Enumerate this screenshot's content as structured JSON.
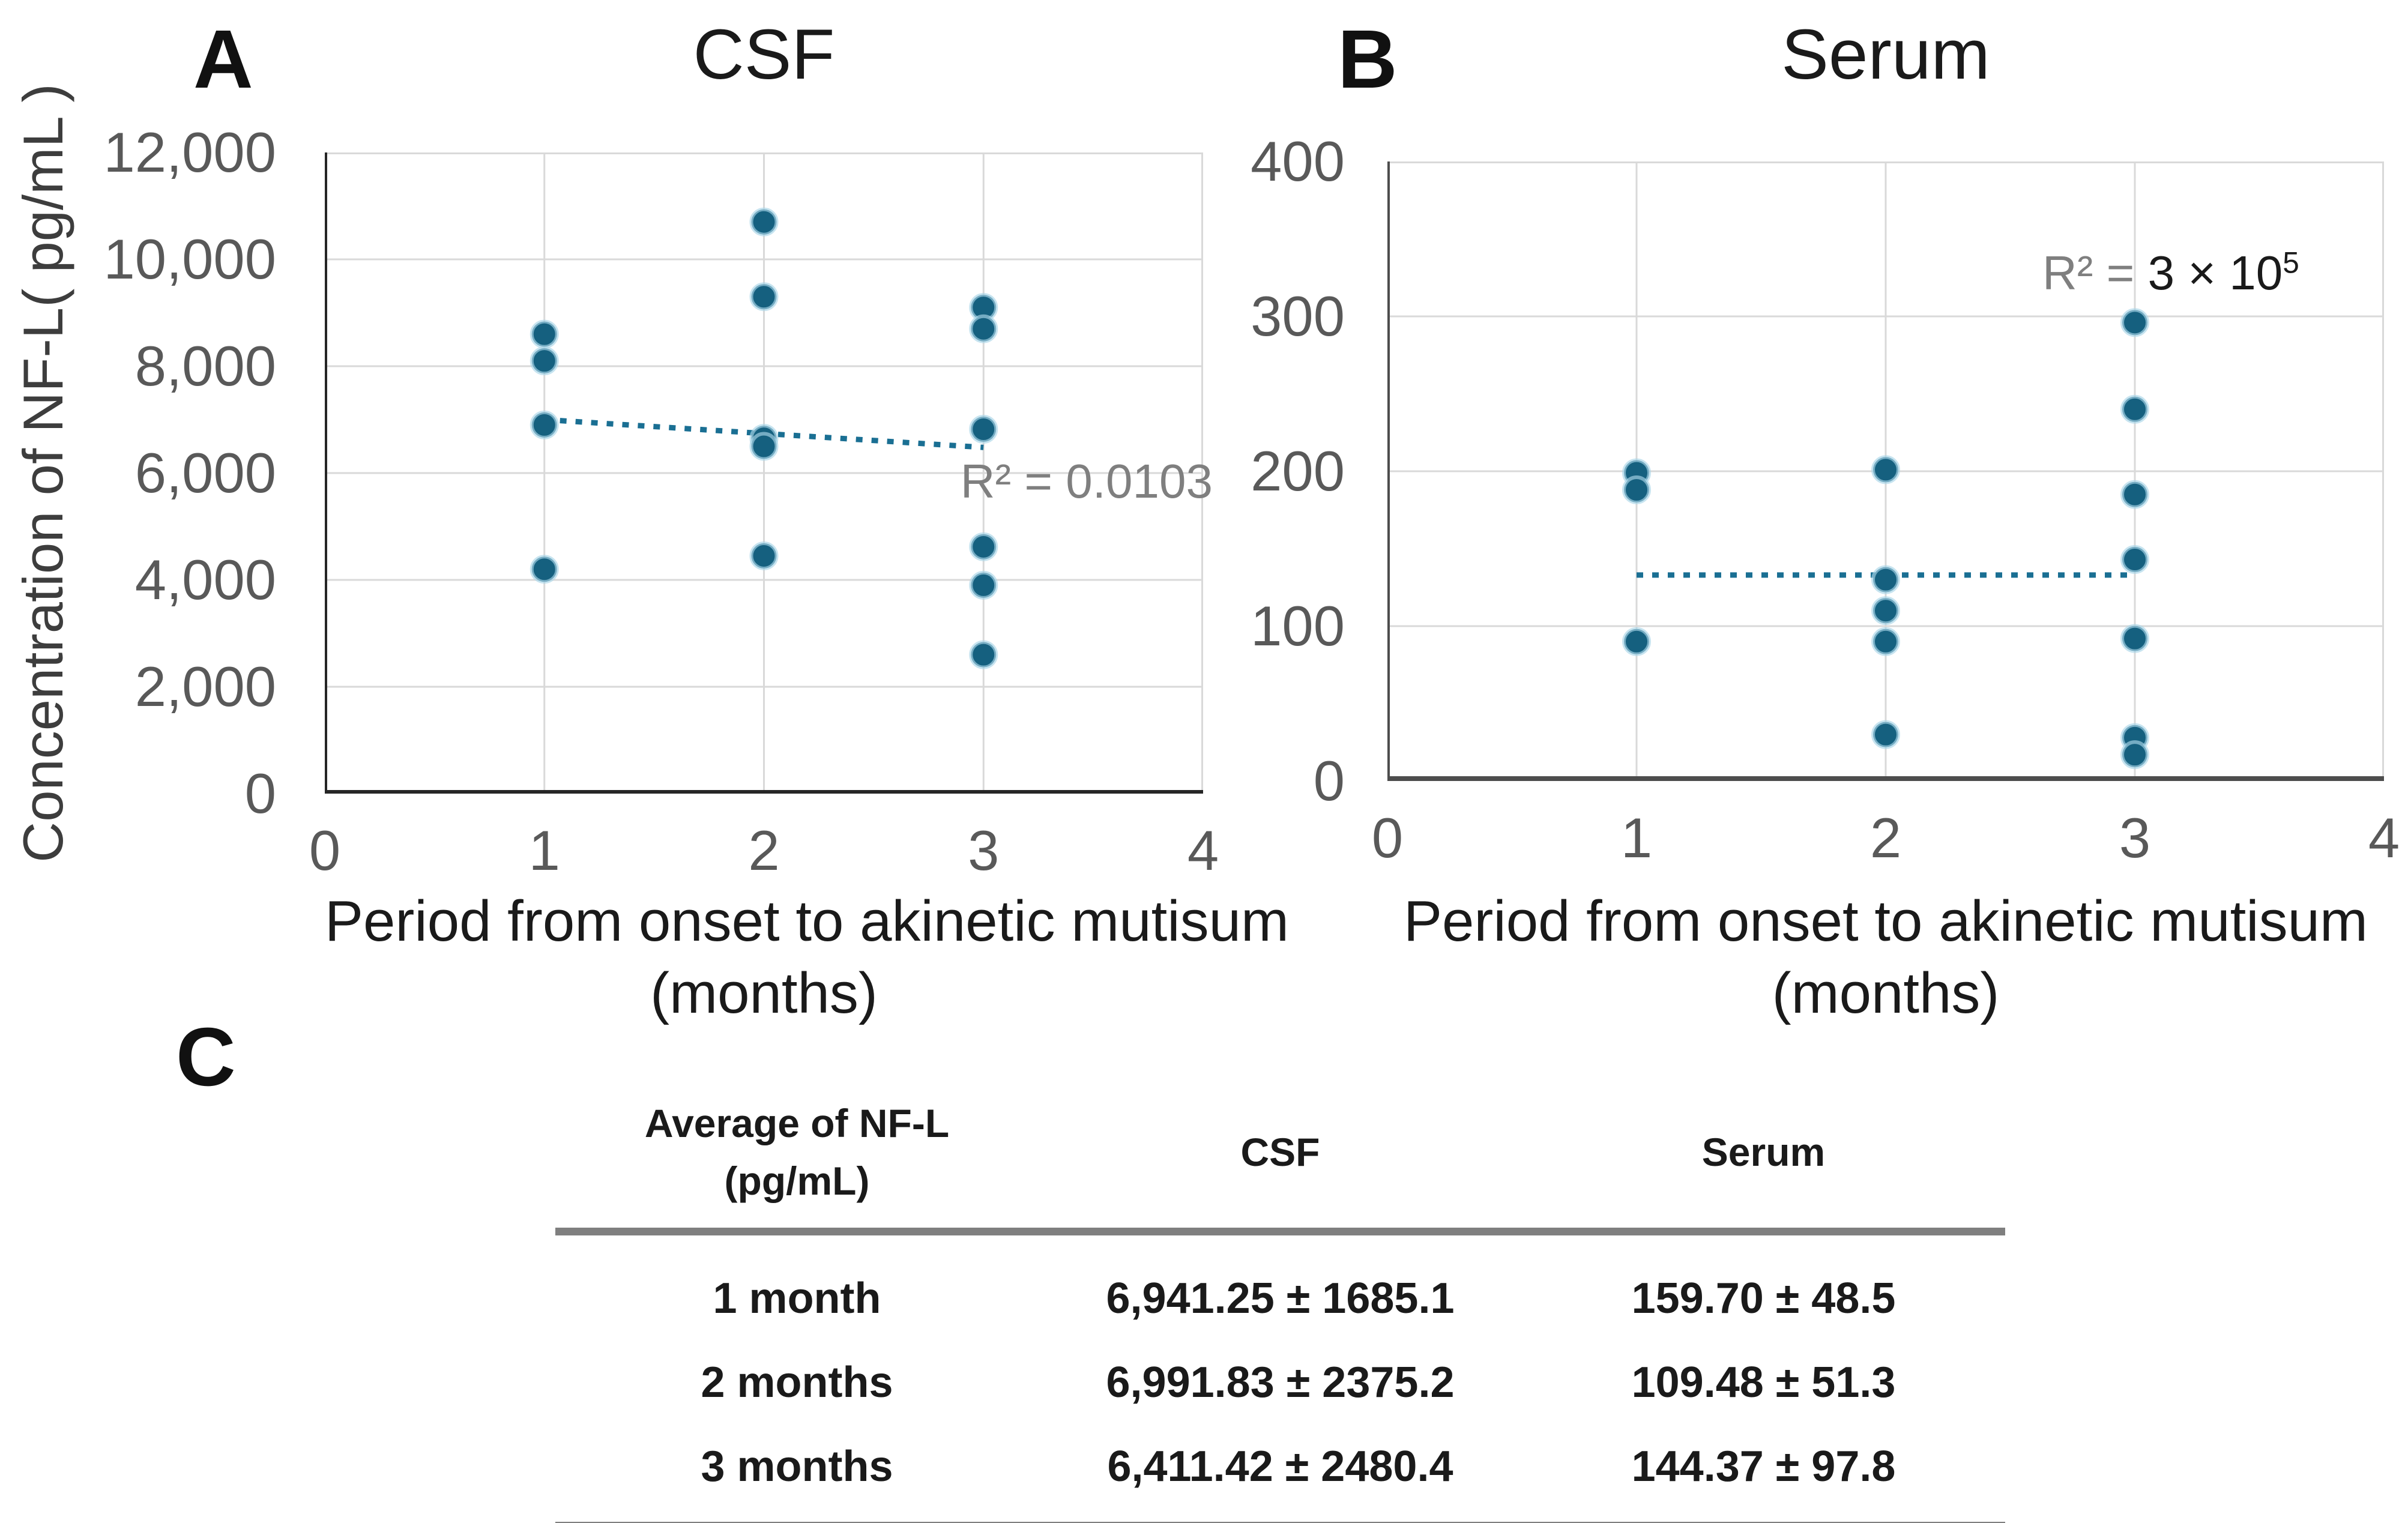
{
  "labels": {
    "panel_a": "A",
    "panel_b": "B",
    "panel_c": "C"
  },
  "colors": {
    "dot_fill": "#15607f",
    "dot_halo": "#a9d6e8",
    "trendline": "#1a6f93",
    "gridline": "#d9d9d9",
    "axis_spine_a": "#262626",
    "axis_spine_b": "#4d4d4d",
    "tick_text": "#595959",
    "r2_gray": "#7f7f7f",
    "r2_dark": "#1a1a1a",
    "table_rule": "#7f7f7f"
  },
  "chart_data": [
    {
      "type": "scatter",
      "panel": "A",
      "title": "CSF",
      "ylabel": "Concentration of NF-L( pg/mL )",
      "xlabel_line1": "Period from onset to akinetic mutisum",
      "xlabel_line2": "(months)",
      "xlim": [
        0,
        4
      ],
      "ylim": [
        0,
        12000
      ],
      "xticks": [
        0,
        1,
        2,
        3,
        4
      ],
      "xtick_labels": [
        "0",
        "1",
        "2",
        "3",
        "4"
      ],
      "yticks": [
        0,
        2000,
        4000,
        6000,
        8000,
        10000,
        12000
      ],
      "ytick_labels": [
        "0",
        "2,000",
        "4,000",
        "6,000",
        "8,000",
        "10,000",
        "12,000"
      ],
      "grid": true,
      "legend": "none",
      "points": [
        [
          1,
          8600
        ],
        [
          1,
          8100
        ],
        [
          1,
          6900
        ],
        [
          1,
          4200
        ],
        [
          2,
          10700
        ],
        [
          2,
          9300
        ],
        [
          2,
          6650
        ],
        [
          2,
          6500
        ],
        [
          2,
          4450
        ],
        [
          3,
          9100
        ],
        [
          3,
          8700
        ],
        [
          3,
          6820
        ],
        [
          3,
          4620
        ],
        [
          3,
          3900
        ],
        [
          3,
          2600
        ]
      ],
      "trendline": {
        "x1": 1,
        "y1": 7000,
        "x2": 3,
        "y2": 6480,
        "style": "dotted"
      },
      "r2": {
        "prefix": "R² = 0.0103",
        "value": "",
        "sup": ""
      }
    },
    {
      "type": "scatter",
      "panel": "B",
      "title": "Serum",
      "ylabel": "",
      "xlabel_line1": "Period from onset to akinetic mutisum",
      "xlabel_line2": "(months)",
      "xlim": [
        0,
        4
      ],
      "ylim": [
        0,
        400
      ],
      "xticks": [
        0,
        1,
        2,
        3,
        4
      ],
      "xtick_labels": [
        "0",
        "1",
        "2",
        "3",
        "4"
      ],
      "yticks": [
        0,
        100,
        200,
        300,
        400
      ],
      "ytick_labels": [
        "0",
        "100",
        "200",
        "300",
        "400"
      ],
      "grid": true,
      "legend": "none",
      "points": [
        [
          1,
          199
        ],
        [
          1,
          188
        ],
        [
          1,
          90
        ],
        [
          2,
          201
        ],
        [
          2,
          130
        ],
        [
          2,
          110
        ],
        [
          2,
          90
        ],
        [
          2,
          30
        ],
        [
          3,
          296
        ],
        [
          3,
          240
        ],
        [
          3,
          185
        ],
        [
          3,
          143
        ],
        [
          3,
          92
        ],
        [
          3,
          28
        ],
        [
          3,
          17
        ]
      ],
      "trendline": {
        "x1": 1,
        "y1": 133,
        "x2": 3,
        "y2": 133,
        "style": "dotted"
      },
      "r2": {
        "prefix": "R² = ",
        "value": "3 × 10",
        "sup": "5"
      }
    }
  ],
  "table": {
    "header": {
      "col1_line1": "Average of NF-L",
      "col1_line2": "(pg/mL)",
      "col2": "CSF",
      "col3": "Serum"
    },
    "rows": [
      {
        "label": "1 month",
        "csf": "6,941.25 ± 1685.1",
        "serum": "159.70 ± 48.5"
      },
      {
        "label": "2 months",
        "csf": "6,991.83 ± 2375.2",
        "serum": "109.48 ± 51.3"
      },
      {
        "label": "3 months",
        "csf": "6,411.42 ± 2480.4",
        "serum": "144.37 ± 97.8"
      }
    ]
  }
}
